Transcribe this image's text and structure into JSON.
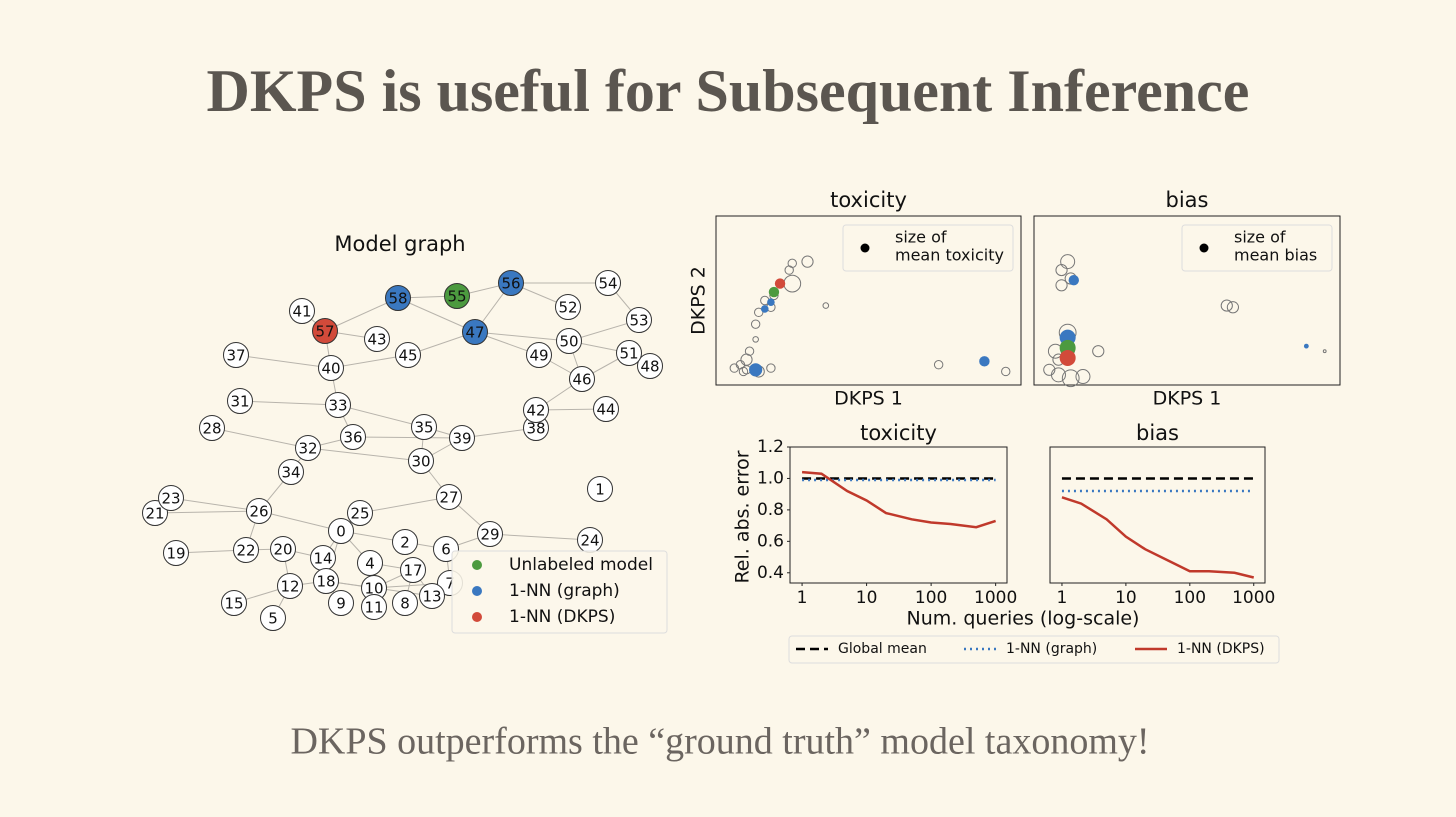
{
  "title": "DKPS is useful for Subsequent Inference",
  "caption": "DKPS outperforms the “ground truth” model taxonomy!",
  "model_graph": {
    "title": "Model graph",
    "nodes": [
      "0",
      "1",
      "2",
      "4",
      "5",
      "6",
      "7",
      "8",
      "9",
      "10",
      "11",
      "12",
      "13",
      "14",
      "15",
      "17",
      "18",
      "19",
      "20",
      "21",
      "22",
      "23",
      "24",
      "25",
      "26",
      "27",
      "28",
      "29",
      "30",
      "31",
      "32",
      "33",
      "34",
      "35",
      "36",
      "37",
      "38",
      "39",
      "40",
      "41",
      "42",
      "43",
      "44",
      "45",
      "46",
      "47",
      "48",
      "49",
      "50",
      "51",
      "52",
      "53",
      "54",
      "55",
      "56",
      "57",
      "58"
    ],
    "legend": [
      {
        "label": "Unlabeled model",
        "color": "#4c9a3f"
      },
      {
        "label": "1-NN (graph)",
        "color": "#3a78c0"
      },
      {
        "label": "1-NN (DKPS)",
        "color": "#d24a3a"
      }
    ]
  },
  "chart_data": [
    {
      "type": "scatter",
      "title": "toxicity",
      "xlabel": "DKPS 1",
      "ylabel": "DKPS 2",
      "xlim": [
        0,
        1
      ],
      "ylim": [
        0,
        1
      ],
      "color": "#777777",
      "x": [
        0.25,
        0.3,
        0.25,
        0.19,
        0.16,
        0.18,
        0.14,
        0.13,
        0.13,
        0.11,
        0.1,
        0.08,
        0.06,
        0.1,
        0.09,
        0.14,
        0.18,
        0.36,
        0.73,
        0.95,
        0.24
      ],
      "y": [
        0.72,
        0.73,
        0.6,
        0.53,
        0.5,
        0.46,
        0.43,
        0.36,
        0.27,
        0.2,
        0.15,
        0.12,
        0.1,
        0.09,
        0.08,
        0.08,
        0.1,
        0.47,
        0.12,
        0.08,
        0.68
      ],
      "sizes": [
        3,
        4,
        6,
        3,
        3,
        3,
        3,
        3,
        2,
        3,
        4,
        3,
        3,
        3,
        3,
        4,
        3,
        2,
        3,
        3,
        3
      ],
      "highlights": [
        {
          "color": "#d24a3a",
          "x": 0.21,
          "y": 0.6,
          "size": 3
        },
        {
          "color": "#4c9a3f",
          "x": 0.19,
          "y": 0.55,
          "size": 3
        },
        {
          "color": "#3a78c0",
          "x": 0.18,
          "y": 0.49,
          "size": 2
        },
        {
          "color": "#3a78c0",
          "x": 0.16,
          "y": 0.45,
          "size": 2
        },
        {
          "color": "#3a78c0",
          "x": 0.13,
          "y": 0.09,
          "size": 4
        },
        {
          "color": "#3a78c0",
          "x": 0.88,
          "y": 0.14,
          "size": 3
        }
      ],
      "size_legend": [
        "size of",
        "mean toxicity"
      ]
    },
    {
      "type": "scatter",
      "title": "bias",
      "xlabel": "DKPS 1",
      "xlim": [
        0,
        1
      ],
      "ylim": [
        0,
        1
      ],
      "color": "#777777",
      "x": [
        0.11,
        0.09,
        0.09,
        0.12,
        0.11,
        0.21,
        0.11,
        0.07,
        0.08,
        0.08,
        0.12,
        0.16,
        0.05,
        0.63,
        0.65,
        0.95
      ],
      "y": [
        0.73,
        0.68,
        0.59,
        0.63,
        0.31,
        0.2,
        0.21,
        0.2,
        0.15,
        0.06,
        0.04,
        0.05,
        0.09,
        0.47,
        0.46,
        0.2
      ],
      "sizes": [
        5,
        4,
        4,
        4,
        6,
        4,
        5,
        5,
        4,
        5,
        6,
        5,
        4,
        4,
        4,
        1
      ],
      "highlights": [
        {
          "color": "#3a78c0",
          "x": 0.13,
          "y": 0.62,
          "size": 3
        },
        {
          "color": "#3a78c0",
          "x": 0.11,
          "y": 0.28,
          "size": 5
        },
        {
          "color": "#4c9a3f",
          "x": 0.11,
          "y": 0.22,
          "size": 5
        },
        {
          "color": "#d24a3a",
          "x": 0.11,
          "y": 0.16,
          "size": 5
        },
        {
          "color": "#3a78c0",
          "x": 0.89,
          "y": 0.23,
          "size": 1
        }
      ],
      "size_legend": [
        "size of",
        "mean bias"
      ]
    },
    {
      "type": "line",
      "title": "toxicity",
      "xlabel": "Num. queries (log-scale)",
      "ylabel": "Rel. abs. error",
      "xscale": "log",
      "xlim": [
        0.65,
        1500
      ],
      "ylim": [
        0.335,
        1.2
      ],
      "xticks": [
        1,
        10,
        100,
        1000
      ],
      "yticks": [
        1.2,
        {
          "value": 1,
          "label": "1.0"
        },
        0.8,
        0.6,
        0.4
      ],
      "x": [
        1,
        2,
        5,
        10,
        20,
        50,
        100,
        200,
        500,
        1000
      ],
      "series": [
        {
          "name": "Global mean",
          "color": "#000000",
          "dash": "9 5",
          "values": [
            1,
            1,
            1,
            1,
            1,
            1,
            1,
            1,
            1,
            1
          ]
        },
        {
          "name": "1-NN (graph)",
          "color": "#3a78c0",
          "dash": "2 4",
          "values": [
            0.99,
            0.99,
            0.99,
            0.99,
            0.99,
            0.99,
            0.99,
            0.99,
            0.99,
            0.99
          ]
        },
        {
          "name": "1-NN (DKPS)",
          "color": "#c0392b",
          "dash": "none",
          "values": [
            1.04,
            1.03,
            0.92,
            0.86,
            0.78,
            0.74,
            0.72,
            0.71,
            0.69,
            0.73
          ]
        }
      ]
    },
    {
      "type": "line",
      "title": "bias",
      "xscale": "log",
      "xlim": [
        0.65,
        1500
      ],
      "ylim": [
        0.335,
        1.2
      ],
      "xticks": [
        1,
        10,
        100,
        1000
      ],
      "x": [
        1,
        2,
        5,
        10,
        20,
        50,
        100,
        200,
        500,
        1000
      ],
      "series": [
        {
          "color": "#000000",
          "dash": "9 5",
          "values": [
            1,
            1,
            1,
            1,
            1,
            1,
            1,
            1,
            1,
            1
          ]
        },
        {
          "color": "#3a78c0",
          "dash": "2 4",
          "values": [
            0.92,
            0.92,
            0.92,
            0.92,
            0.92,
            0.92,
            0.92,
            0.92,
            0.92,
            0.92
          ]
        },
        {
          "color": "#c0392b",
          "dash": "none",
          "values": [
            0.88,
            0.84,
            0.74,
            0.63,
            0.55,
            0.47,
            0.41,
            0.41,
            0.4,
            0.37
          ]
        }
      ]
    }
  ]
}
